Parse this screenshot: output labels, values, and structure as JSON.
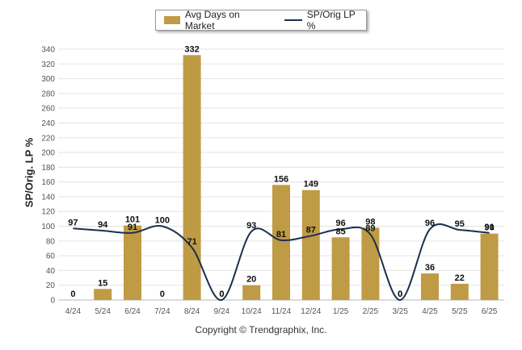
{
  "colors": {
    "bar": "#BF9B45",
    "line": "#1B2F4E",
    "grid": "#e3e3e3",
    "axis_text": "#555555"
  },
  "legend": {
    "bar_label": "Avg Days on Market",
    "line_label": "SP/Orig LP %"
  },
  "footer": "Copyright © Trendgraphix, Inc.",
  "chart_data": {
    "type": "bar",
    "ylabel": "SP/Orig. LP %",
    "xlabel": "",
    "ylim": [
      0,
      340
    ],
    "yticks": [
      0,
      20,
      40,
      60,
      80,
      100,
      120,
      140,
      160,
      180,
      200,
      220,
      240,
      260,
      280,
      300,
      320,
      340
    ],
    "grid": true,
    "legend_position": "top-center",
    "categories": [
      "4/24",
      "5/24",
      "6/24",
      "7/24",
      "8/24",
      "9/24",
      "10/24",
      "11/24",
      "12/24",
      "1/25",
      "2/25",
      "3/25",
      "4/25",
      "5/25",
      "6/25"
    ],
    "series": [
      {
        "name": "Avg Days on Market",
        "kind": "bar",
        "values": [
          0,
          15,
          101,
          0,
          332,
          0,
          20,
          156,
          149,
          85,
          98,
          0,
          36,
          22,
          90
        ]
      },
      {
        "name": "SP/Orig LP %",
        "kind": "line",
        "values": [
          97,
          94,
          91,
          100,
          71,
          0,
          93,
          81,
          87,
          96,
          89,
          0,
          96,
          95,
          91
        ]
      }
    ]
  }
}
